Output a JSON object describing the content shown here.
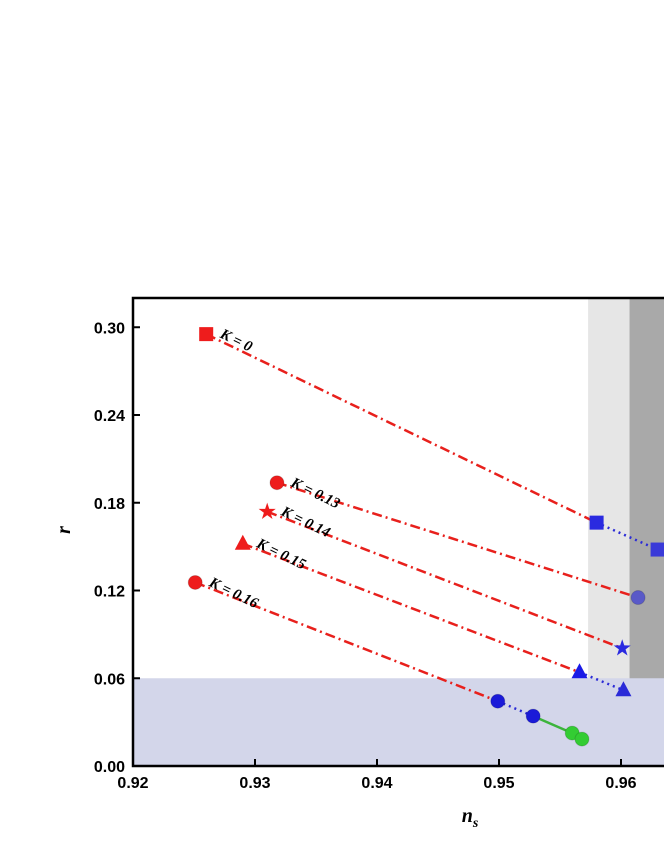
{
  "chart_data": {
    "type": "scatter",
    "xlabel": "n",
    "xlabel_sub": "s",
    "ylabel": "r",
    "xlim": [
      0.92,
      0.97
    ],
    "ylim": [
      0,
      0.32
    ],
    "xticks": [
      {
        "value": 0.92,
        "label": "0.92"
      },
      {
        "value": 0.93,
        "label": "0.93"
      },
      {
        "value": 0.94,
        "label": "0.94"
      },
      {
        "value": 0.95,
        "label": "0.95"
      },
      {
        "value": 0.96,
        "label": "0.96"
      }
    ],
    "yticks": [
      {
        "value": 0,
        "label": "0.00"
      },
      {
        "value": 0.06,
        "label": "0.06"
      },
      {
        "value": 0.12,
        "label": "0.12"
      },
      {
        "value": 0.18,
        "label": "0.18"
      },
      {
        "value": 0.24,
        "label": "0.24"
      },
      {
        "value": 0.3,
        "label": "0.30"
      }
    ],
    "regions": [
      {
        "axis": "x",
        "range": [
          0.9573,
          0.9607
        ],
        "color": "#e6e6e6"
      },
      {
        "axis": "x",
        "range": [
          0.9607,
          0.97
        ],
        "color": "#a9a9a9"
      },
      {
        "axis": "y",
        "range": [
          0,
          0.06
        ],
        "color": "#d3d6ea"
      }
    ],
    "segment_colors": {
      "dash-dot": "#e8201c",
      "dotted": "#2b2bd6",
      "solid": "#3cb43c"
    },
    "series": [
      {
        "name": "K = 0",
        "marker": "square",
        "x": [
          0.926,
          0.958,
          0.963
        ],
        "values": [
          0.2953,
          0.1664,
          0.148
        ],
        "marker_colors": [
          "#ee1c1c",
          "#2a2ae0",
          "#3a3ad8"
        ],
        "line_styles": [
          "dash-dot",
          "dotted"
        ]
      },
      {
        "name": "K = 0.13",
        "marker": "circle",
        "x": [
          0.9318,
          0.9614
        ],
        "values": [
          0.1937,
          0.1152
        ],
        "marker_colors": [
          "#ee1c1c",
          "#5a5ac8"
        ],
        "line_styles": [
          "dash-dot"
        ]
      },
      {
        "name": "K = 0.14",
        "marker": "star",
        "x": [
          0.931,
          0.9601
        ],
        "values": [
          0.1739,
          0.0805
        ],
        "marker_colors": [
          "#ee1c1c",
          "#2a2ae0"
        ],
        "line_styles": [
          "dash-dot"
        ]
      },
      {
        "name": "K = 0.15",
        "marker": "triangle",
        "x": [
          0.929,
          0.9566,
          0.9602
        ],
        "values": [
          0.152,
          0.0641,
          0.0518
        ],
        "marker_colors": [
          "#ee1c1c",
          "#1a1ae6",
          "#2a2ad8"
        ],
        "line_styles": [
          "dash-dot",
          "dotted"
        ]
      },
      {
        "name": "K = 0.16",
        "marker": "circle",
        "x": [
          0.9251,
          0.9499,
          0.9528,
          0.956,
          0.9568
        ],
        "values": [
          0.1255,
          0.0443,
          0.0341,
          0.0225,
          0.0184
        ],
        "marker_colors": [
          "#ee1c1c",
          "#1a1ad8",
          "#1a1ad8",
          "#33cc33",
          "#33cc33"
        ],
        "line_styles": [
          "dash-dot",
          "dotted",
          "solid",
          "solid"
        ]
      }
    ]
  }
}
